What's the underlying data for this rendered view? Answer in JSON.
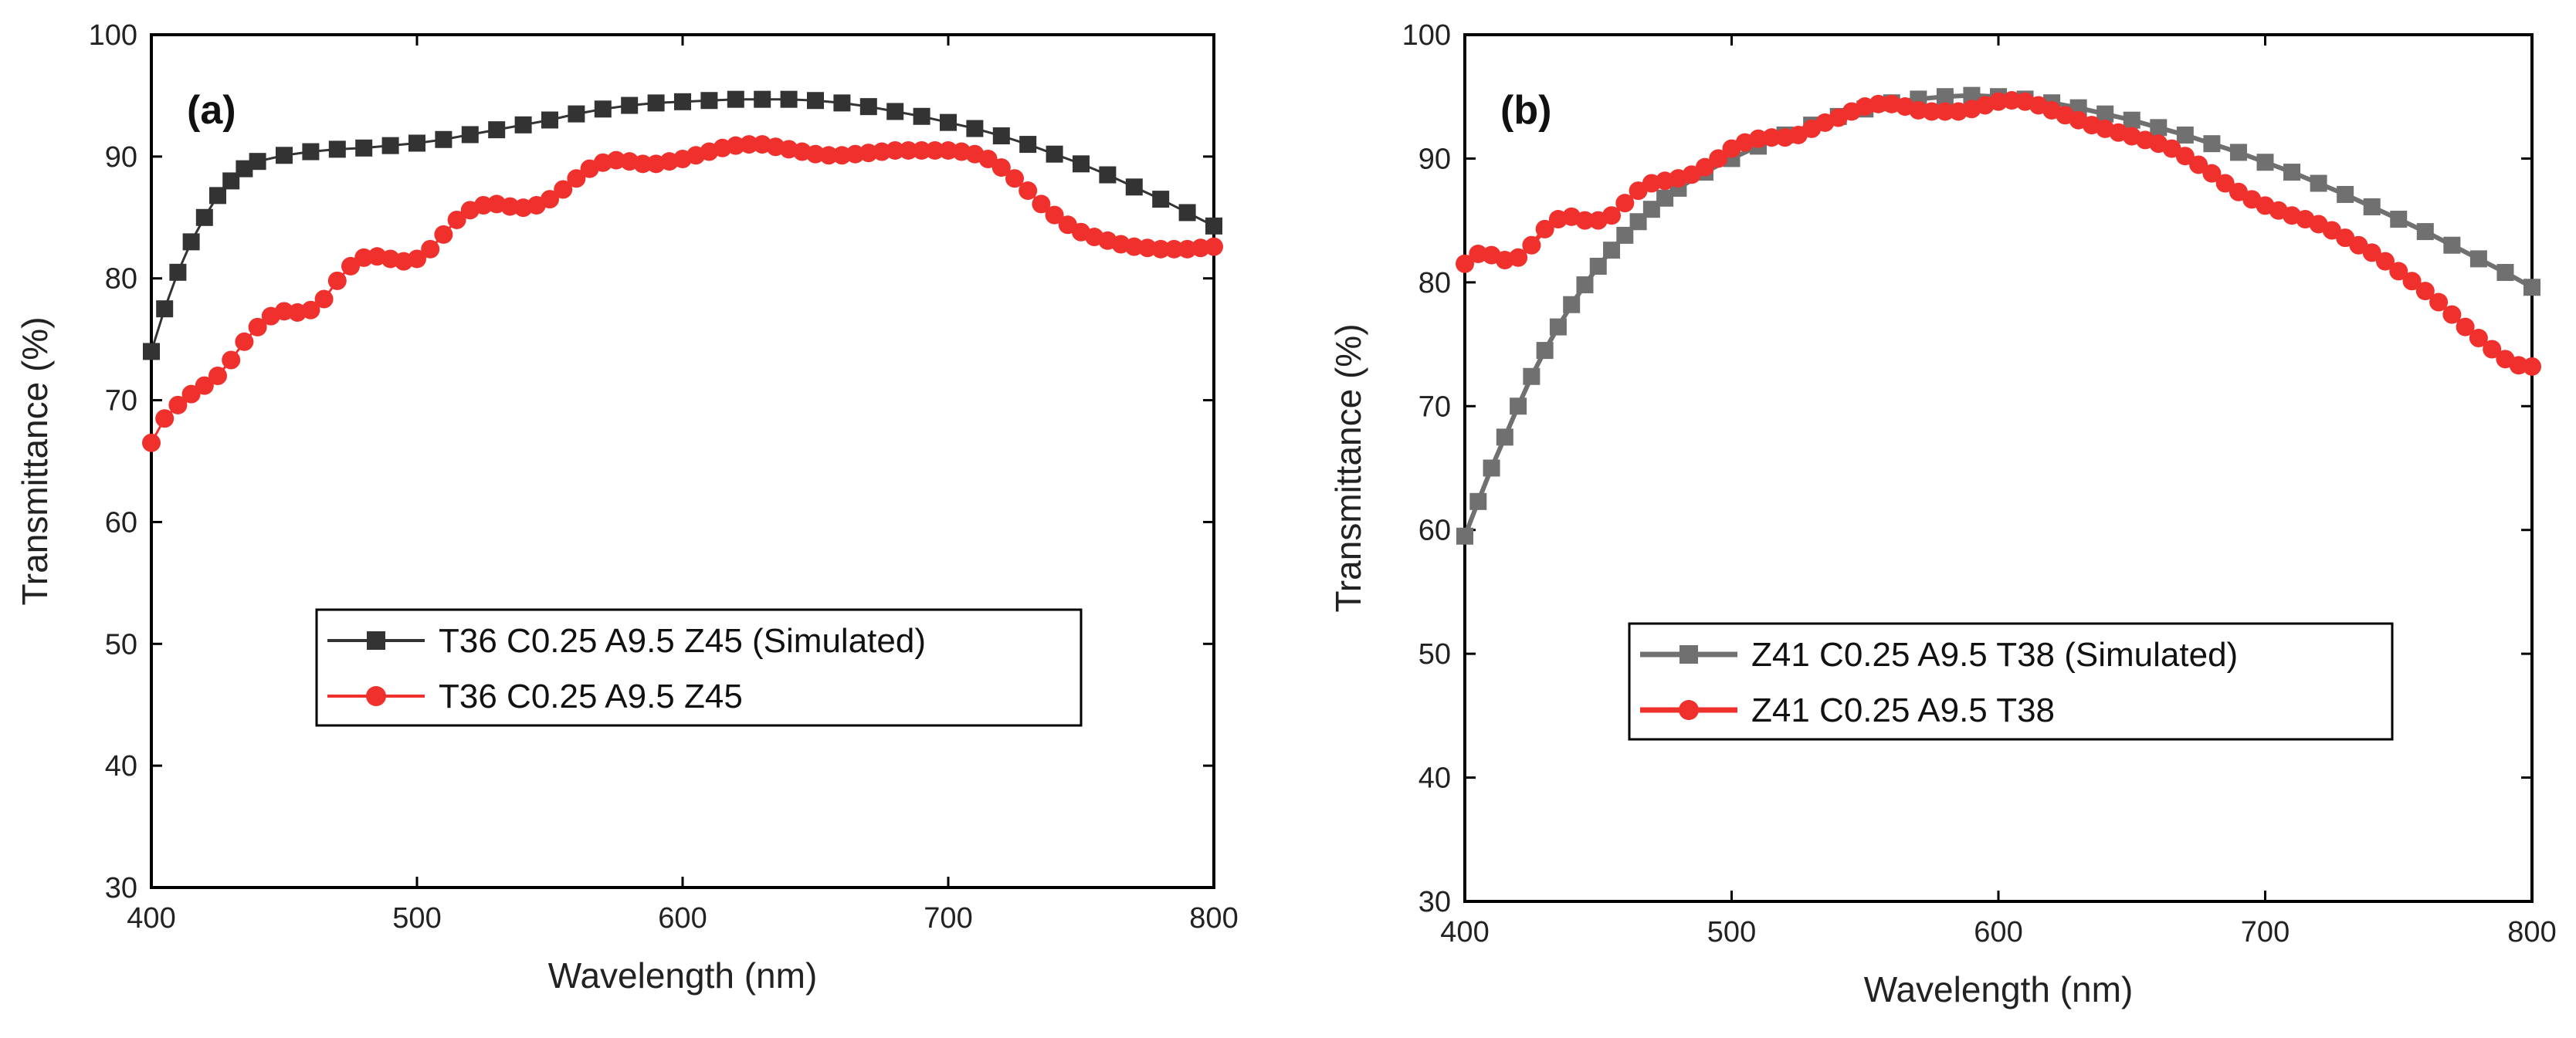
{
  "chart_data": [
    {
      "type": "line",
      "panel_label": "(a)",
      "xlabel": "Wavelength (nm)",
      "ylabel": "Transmittance (%)",
      "xlim": [
        400,
        800
      ],
      "ylim": [
        30,
        100
      ],
      "xticks": [
        400,
        500,
        600,
        700,
        800
      ],
      "yticks": [
        30,
        40,
        50,
        60,
        70,
        80,
        90,
        100
      ],
      "legend_position": "center-left",
      "series": [
        {
          "name": "T36 C0.25 A9.5 Z45 (Simulated)",
          "color": "#333333",
          "marker": "square",
          "points": [
            [
              400,
              74.0
            ],
            [
              405,
              77.5
            ],
            [
              410,
              80.5
            ],
            [
              415,
              83.0
            ],
            [
              420,
              85.0
            ],
            [
              425,
              86.8
            ],
            [
              430,
              88.0
            ],
            [
              435,
              89.0
            ],
            [
              440,
              89.6
            ],
            [
              450,
              90.1
            ],
            [
              460,
              90.4
            ],
            [
              470,
              90.6
            ],
            [
              480,
              90.7
            ],
            [
              490,
              90.9
            ],
            [
              500,
              91.1
            ],
            [
              510,
              91.4
            ],
            [
              520,
              91.8
            ],
            [
              530,
              92.2
            ],
            [
              540,
              92.6
            ],
            [
              550,
              93.0
            ],
            [
              560,
              93.5
            ],
            [
              570,
              93.9
            ],
            [
              580,
              94.2
            ],
            [
              590,
              94.4
            ],
            [
              600,
              94.5
            ],
            [
              610,
              94.6
            ],
            [
              620,
              94.7
            ],
            [
              630,
              94.7
            ],
            [
              640,
              94.7
            ],
            [
              650,
              94.6
            ],
            [
              660,
              94.4
            ],
            [
              670,
              94.1
            ],
            [
              680,
              93.7
            ],
            [
              690,
              93.3
            ],
            [
              700,
              92.8
            ],
            [
              710,
              92.3
            ],
            [
              720,
              91.7
            ],
            [
              730,
              91.0
            ],
            [
              740,
              90.2
            ],
            [
              750,
              89.4
            ],
            [
              760,
              88.5
            ],
            [
              770,
              87.5
            ],
            [
              780,
              86.5
            ],
            [
              790,
              85.4
            ],
            [
              800,
              84.3
            ]
          ]
        },
        {
          "name": "T36 C0.25 A9.5 Z45",
          "color": "#f0302c",
          "marker": "circle",
          "points": [
            [
              400,
              66.5
            ],
            [
              405,
              68.5
            ],
            [
              410,
              69.6
            ],
            [
              415,
              70.5
            ],
            [
              420,
              71.2
            ],
            [
              425,
              72.0
            ],
            [
              430,
              73.3
            ],
            [
              435,
              74.8
            ],
            [
              440,
              76.0
            ],
            [
              445,
              76.9
            ],
            [
              450,
              77.3
            ],
            [
              455,
              77.2
            ],
            [
              460,
              77.4
            ],
            [
              465,
              78.3
            ],
            [
              470,
              79.8
            ],
            [
              475,
              81.0
            ],
            [
              480,
              81.7
            ],
            [
              485,
              81.8
            ],
            [
              490,
              81.6
            ],
            [
              495,
              81.4
            ],
            [
              500,
              81.6
            ],
            [
              505,
              82.4
            ],
            [
              510,
              83.6
            ],
            [
              515,
              84.8
            ],
            [
              520,
              85.6
            ],
            [
              525,
              86.0
            ],
            [
              530,
              86.1
            ],
            [
              535,
              85.9
            ],
            [
              540,
              85.8
            ],
            [
              545,
              86.0
            ],
            [
              550,
              86.5
            ],
            [
              555,
              87.3
            ],
            [
              560,
              88.2
            ],
            [
              565,
              89.0
            ],
            [
              570,
              89.5
            ],
            [
              575,
              89.7
            ],
            [
              580,
              89.6
            ],
            [
              585,
              89.4
            ],
            [
              590,
              89.4
            ],
            [
              595,
              89.6
            ],
            [
              600,
              89.8
            ],
            [
              605,
              90.1
            ],
            [
              610,
              90.4
            ],
            [
              615,
              90.7
            ],
            [
              620,
              90.9
            ],
            [
              625,
              91.0
            ],
            [
              630,
              91.0
            ],
            [
              635,
              90.8
            ],
            [
              640,
              90.6
            ],
            [
              645,
              90.4
            ],
            [
              650,
              90.2
            ],
            [
              655,
              90.1
            ],
            [
              660,
              90.1
            ],
            [
              665,
              90.2
            ],
            [
              670,
              90.3
            ],
            [
              675,
              90.4
            ],
            [
              680,
              90.5
            ],
            [
              685,
              90.5
            ],
            [
              690,
              90.5
            ],
            [
              695,
              90.5
            ],
            [
              700,
              90.5
            ],
            [
              705,
              90.4
            ],
            [
              710,
              90.2
            ],
            [
              715,
              89.8
            ],
            [
              720,
              89.1
            ],
            [
              725,
              88.2
            ],
            [
              730,
              87.2
            ],
            [
              735,
              86.1
            ],
            [
              740,
              85.2
            ],
            [
              745,
              84.4
            ],
            [
              750,
              83.8
            ],
            [
              755,
              83.4
            ],
            [
              760,
              83.1
            ],
            [
              765,
              82.8
            ],
            [
              770,
              82.6
            ],
            [
              775,
              82.5
            ],
            [
              780,
              82.4
            ],
            [
              785,
              82.4
            ],
            [
              790,
              82.4
            ],
            [
              795,
              82.5
            ],
            [
              800,
              82.6
            ]
          ]
        }
      ]
    },
    {
      "type": "line",
      "panel_label": "(b)",
      "xlabel": "Wavelength (nm)",
      "ylabel": "Transmittance (%)",
      "xlim": [
        400,
        800
      ],
      "ylim": [
        30,
        100
      ],
      "xticks": [
        400,
        500,
        600,
        700,
        800
      ],
      "yticks": [
        30,
        40,
        50,
        60,
        70,
        80,
        90,
        100
      ],
      "legend_position": "center",
      "series": [
        {
          "name": "Z41 C0.25 A9.5 T38 (Simulated)",
          "color": "#707070",
          "marker": "square",
          "points": [
            [
              400,
              59.5
            ],
            [
              405,
              62.3
            ],
            [
              410,
              65.0
            ],
            [
              415,
              67.5
            ],
            [
              420,
              70.0
            ],
            [
              425,
              72.4
            ],
            [
              430,
              74.5
            ],
            [
              435,
              76.4
            ],
            [
              440,
              78.2
            ],
            [
              445,
              79.8
            ],
            [
              450,
              81.3
            ],
            [
              455,
              82.6
            ],
            [
              460,
              83.8
            ],
            [
              465,
              84.9
            ],
            [
              470,
              85.9
            ],
            [
              475,
              86.8
            ],
            [
              480,
              87.6
            ],
            [
              490,
              88.9
            ],
            [
              500,
              90.0
            ],
            [
              510,
              91.0
            ],
            [
              520,
              91.9
            ],
            [
              530,
              92.7
            ],
            [
              540,
              93.4
            ],
            [
              550,
              94.0
            ],
            [
              560,
              94.5
            ],
            [
              570,
              94.8
            ],
            [
              580,
              95.0
            ],
            [
              590,
              95.1
            ],
            [
              600,
              95.0
            ],
            [
              610,
              94.8
            ],
            [
              620,
              94.5
            ],
            [
              630,
              94.1
            ],
            [
              640,
              93.6
            ],
            [
              650,
              93.1
            ],
            [
              660,
              92.5
            ],
            [
              670,
              91.9
            ],
            [
              680,
              91.2
            ],
            [
              690,
              90.5
            ],
            [
              700,
              89.7
            ],
            [
              710,
              88.9
            ],
            [
              720,
              88.0
            ],
            [
              730,
              87.1
            ],
            [
              740,
              86.1
            ],
            [
              750,
              85.1
            ],
            [
              760,
              84.1
            ],
            [
              770,
              83.0
            ],
            [
              780,
              81.9
            ],
            [
              790,
              80.8
            ],
            [
              800,
              79.6
            ]
          ]
        },
        {
          "name": "Z41 C0.25 A9.5 T38",
          "color": "#f0302c",
          "marker": "circle",
          "points": [
            [
              400,
              81.5
            ],
            [
              405,
              82.3
            ],
            [
              410,
              82.2
            ],
            [
              415,
              81.8
            ],
            [
              420,
              82.0
            ],
            [
              425,
              83.0
            ],
            [
              430,
              84.3
            ],
            [
              435,
              85.1
            ],
            [
              440,
              85.3
            ],
            [
              445,
              85.0
            ],
            [
              450,
              85.0
            ],
            [
              455,
              85.4
            ],
            [
              460,
              86.4
            ],
            [
              465,
              87.4
            ],
            [
              470,
              88.0
            ],
            [
              475,
              88.2
            ],
            [
              480,
              88.4
            ],
            [
              485,
              88.7
            ],
            [
              490,
              89.3
            ],
            [
              495,
              90.0
            ],
            [
              500,
              90.8
            ],
            [
              505,
              91.3
            ],
            [
              510,
              91.6
            ],
            [
              515,
              91.7
            ],
            [
              520,
              91.7
            ],
            [
              525,
              91.9
            ],
            [
              530,
              92.4
            ],
            [
              535,
              92.9
            ],
            [
              540,
              93.3
            ],
            [
              545,
              93.8
            ],
            [
              550,
              94.2
            ],
            [
              555,
              94.4
            ],
            [
              560,
              94.4
            ],
            [
              565,
              94.2
            ],
            [
              570,
              93.9
            ],
            [
              575,
              93.8
            ],
            [
              580,
              93.8
            ],
            [
              585,
              93.8
            ],
            [
              590,
              94.0
            ],
            [
              595,
              94.3
            ],
            [
              600,
              94.6
            ],
            [
              605,
              94.7
            ],
            [
              610,
              94.6
            ],
            [
              615,
              94.3
            ],
            [
              620,
              93.9
            ],
            [
              625,
              93.5
            ],
            [
              630,
              93.1
            ],
            [
              635,
              92.7
            ],
            [
              640,
              92.4
            ],
            [
              645,
              92.1
            ],
            [
              650,
              91.8
            ],
            [
              655,
              91.5
            ],
            [
              660,
              91.2
            ],
            [
              665,
              90.8
            ],
            [
              670,
              90.2
            ],
            [
              675,
              89.5
            ],
            [
              680,
              88.8
            ],
            [
              685,
              88.0
            ],
            [
              690,
              87.3
            ],
            [
              695,
              86.7
            ],
            [
              700,
              86.2
            ],
            [
              705,
              85.8
            ],
            [
              710,
              85.4
            ],
            [
              715,
              85.1
            ],
            [
              720,
              84.7
            ],
            [
              725,
              84.2
            ],
            [
              730,
              83.6
            ],
            [
              735,
              83.0
            ],
            [
              740,
              82.4
            ],
            [
              745,
              81.7
            ],
            [
              750,
              80.9
            ],
            [
              755,
              80.1
            ],
            [
              760,
              79.3
            ],
            [
              765,
              78.4
            ],
            [
              770,
              77.4
            ],
            [
              775,
              76.4
            ],
            [
              780,
              75.5
            ],
            [
              785,
              74.6
            ],
            [
              790,
              73.8
            ],
            [
              795,
              73.3
            ],
            [
              800,
              73.2
            ]
          ]
        }
      ]
    }
  ]
}
